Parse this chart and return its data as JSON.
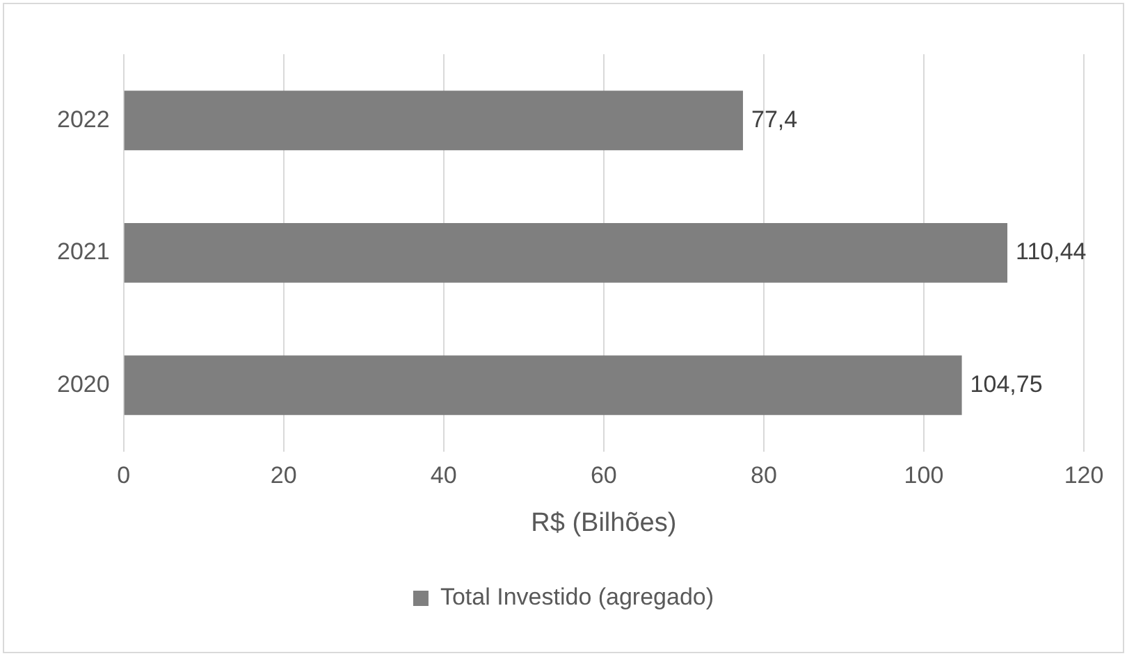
{
  "chart_data": {
    "type": "bar",
    "orientation": "horizontal",
    "xlabel": "R$ (Bilhões)",
    "categories": [
      "2022",
      "2021",
      "2020"
    ],
    "series": [
      {
        "name": "Total Investido (agregado)",
        "color": "#7f7f7f",
        "values": [
          77.4,
          110.44,
          104.75
        ],
        "value_labels": [
          "77,4",
          "110,44",
          "104,75"
        ]
      }
    ],
    "xlim": [
      0,
      120
    ],
    "xticks": [
      0,
      20,
      40,
      60,
      80,
      100,
      120
    ],
    "grid": "x",
    "legend": "bottom"
  }
}
